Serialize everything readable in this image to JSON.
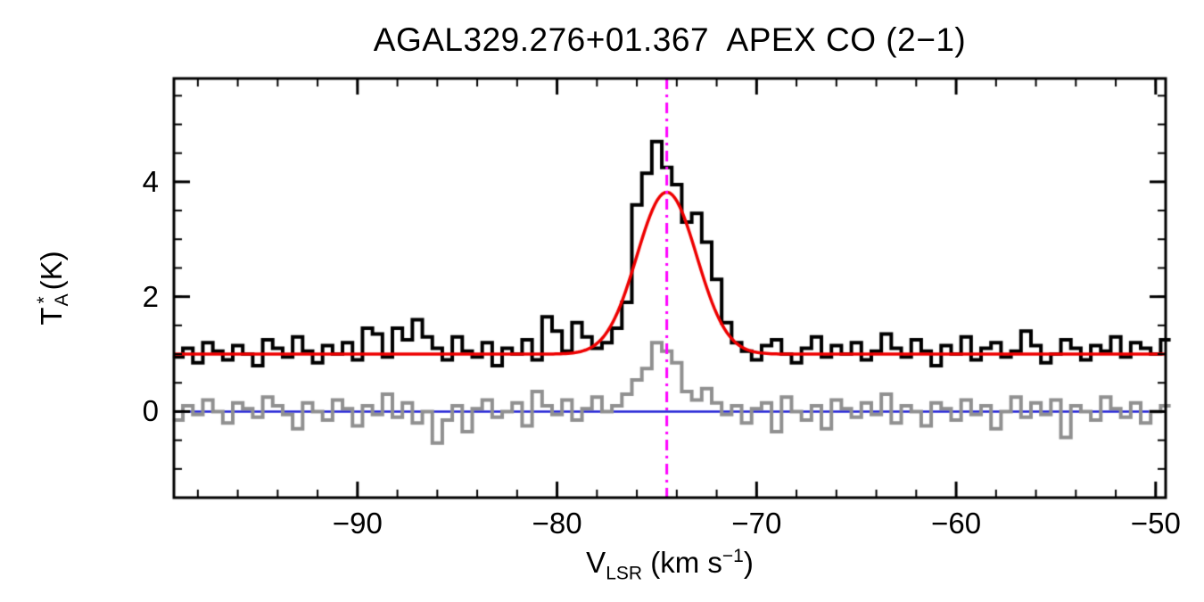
{
  "title": "AGAL329.276+01.367  APEX CO (2−1)",
  "labels": {
    "y_main": "T",
    "y_sup": "*",
    "y_sub": "A",
    "y_unit": "(K)",
    "x_main": "V",
    "x_sub": "LSR",
    "x_unit_open": "(km s",
    "x_exp": "−1",
    "x_unit_close": ")"
  },
  "chart_data": {
    "type": "line",
    "subtype": "spectrum-histogram",
    "title": "AGAL329.276+01.367  APEX CO (2−1)",
    "xlabel": "V_LSR (km s^-1)",
    "ylabel": "T_A^* (K)",
    "xlim": [
      -99.2,
      -49.5
    ],
    "ylim": [
      -1.5,
      5.8
    ],
    "grid": false,
    "legend": "none",
    "x_ticks": {
      "values": [
        -90,
        -80,
        -70,
        -60,
        -50
      ],
      "labels": [
        "−90",
        "−80",
        "−70",
        "−60",
        "−50"
      ],
      "minor_step": 2
    },
    "y_ticks": {
      "values": [
        0,
        2,
        4
      ],
      "labels": [
        "0",
        "2",
        "4"
      ],
      "minor_step": 0.5
    },
    "channels": {
      "v_start": -99.0,
      "dv": 0.5,
      "n": 100
    },
    "series": [
      {
        "name": "reference-spectrum",
        "color": "#909090",
        "line_width": 4,
        "values": [
          -0.15,
          0.1,
          -0.05,
          0.2,
          0.0,
          -0.2,
          0.15,
          0.05,
          -0.1,
          0.25,
          0.1,
          -0.05,
          -0.3,
          0.15,
          0.0,
          -0.15,
          0.2,
          0.05,
          -0.25,
          0.1,
          -0.05,
          0.3,
          -0.1,
          0.15,
          -0.2,
          0.0,
          -0.55,
          -0.15,
          0.1,
          -0.35,
          0.05,
          0.2,
          -0.1,
          0.0,
          0.15,
          -0.25,
          0.35,
          0.1,
          -0.05,
          0.2,
          -0.15,
          0.05,
          0.25,
          0.0,
          0.1,
          0.3,
          0.55,
          0.75,
          1.2,
          1.05,
          0.85,
          0.35,
          0.2,
          0.4,
          0.15,
          -0.05,
          0.1,
          -0.2,
          0.05,
          0.15,
          -0.35,
          0.25,
          0.0,
          -0.15,
          0.1,
          -0.3,
          0.2,
          0.05,
          -0.1,
          0.15,
          -0.05,
          0.3,
          -0.2,
          0.1,
          0.0,
          -0.25,
          0.15,
          0.05,
          -0.15,
          0.2,
          -0.05,
          0.1,
          -0.3,
          0.0,
          0.25,
          -0.1,
          0.15,
          -0.05,
          0.2,
          -0.45,
          0.1,
          0.0,
          -0.15,
          0.25,
          0.05,
          -0.1,
          0.15,
          -0.2,
          0.0,
          0.1
        ]
      },
      {
        "name": "co-2-1-spectrum",
        "color": "#000000",
        "line_width": 4,
        "values": [
          0.95,
          1.1,
          0.85,
          1.2,
          1.05,
          0.9,
          1.15,
          1.0,
          0.8,
          1.25,
          1.1,
          0.95,
          1.3,
          1.05,
          0.85,
          1.15,
          1.0,
          1.2,
          0.9,
          1.45,
          1.35,
          0.95,
          1.45,
          1.25,
          1.6,
          1.3,
          1.1,
          0.9,
          1.3,
          1.05,
          0.95,
          1.2,
          0.8,
          1.1,
          1.0,
          1.25,
          0.9,
          1.65,
          1.4,
          1.05,
          1.55,
          1.3,
          1.1,
          1.2,
          1.45,
          1.9,
          3.6,
          4.15,
          4.7,
          4.25,
          3.95,
          3.3,
          3.45,
          2.95,
          2.3,
          1.55,
          1.2,
          1.05,
          0.9,
          1.15,
          1.25,
          1.0,
          0.85,
          1.1,
          1.3,
          0.95,
          1.15,
          1.0,
          1.2,
          0.9,
          1.05,
          1.35,
          1.1,
          0.95,
          1.25,
          1.05,
          0.8,
          1.15,
          1.0,
          1.3,
          0.9,
          1.1,
          1.2,
          0.95,
          1.05,
          1.4,
          1.15,
          0.85,
          1.0,
          1.25,
          1.1,
          0.9,
          1.15,
          1.05,
          1.3,
          0.95,
          1.2,
          1.1,
          1.0,
          1.25
        ]
      }
    ],
    "gaussian_fit": {
      "name": "gaussian-fit",
      "color": "#ee0000",
      "line_width": 3.5,
      "baseline": 1.0,
      "amplitude": 2.82,
      "center": -74.5,
      "sigma": 1.5
    },
    "zero_line": {
      "y": 0,
      "color": "#2525d6",
      "line_width": 2.5
    },
    "velocity_marker": {
      "x": -74.5,
      "color": "#ff00ff",
      "line_width": 3,
      "style": "dash-dot"
    },
    "frame_color": "#000000"
  }
}
